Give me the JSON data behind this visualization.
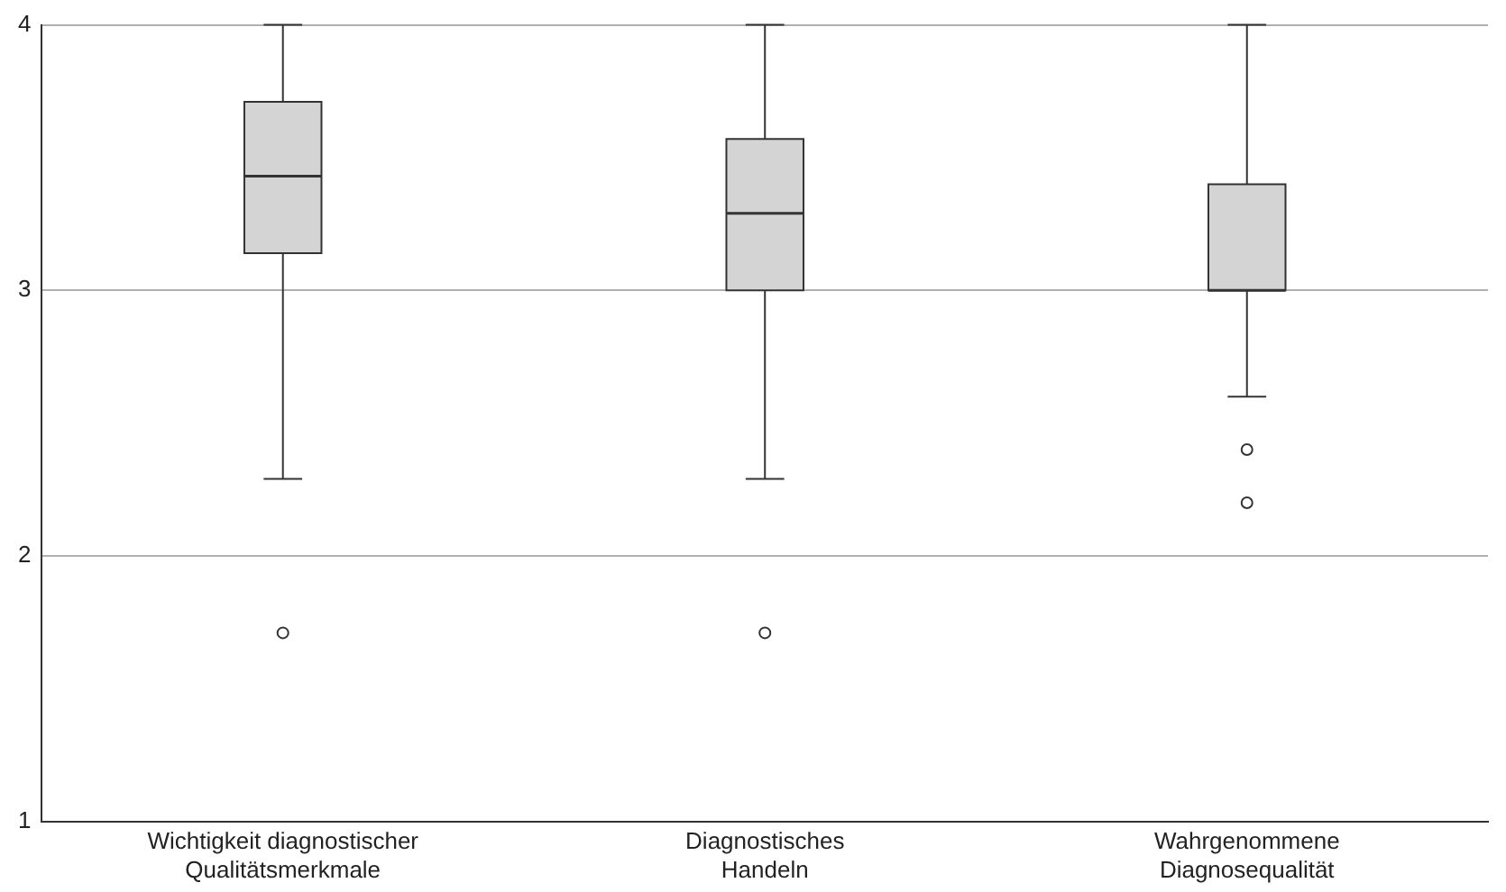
{
  "chart_data": {
    "type": "box",
    "categories": [
      "Wichtigkeit diagnostischer Qualitätsmerkmale",
      "Diagnostisches Handeln",
      "Wahrgenommene Diagnosequalität"
    ],
    "boxes": [
      {
        "low": 2.29,
        "q1": 3.14,
        "median": 3.43,
        "q3": 3.71,
        "high": 4,
        "outliers": [
          1.71
        ]
      },
      {
        "low": 2.29,
        "q1": 3,
        "median": 3.29,
        "q3": 3.57,
        "high": 4,
        "outliers": [
          1.71
        ]
      },
      {
        "low": 2.6,
        "q1": 3,
        "median": 3,
        "q3": 3.4,
        "high": 4,
        "outliers": [
          2.4,
          2.2
        ]
      }
    ],
    "color": "#d4d4d4",
    "ylim": [
      1,
      4
    ],
    "yticks": [
      1,
      2,
      3,
      4
    ],
    "grid": "y"
  }
}
